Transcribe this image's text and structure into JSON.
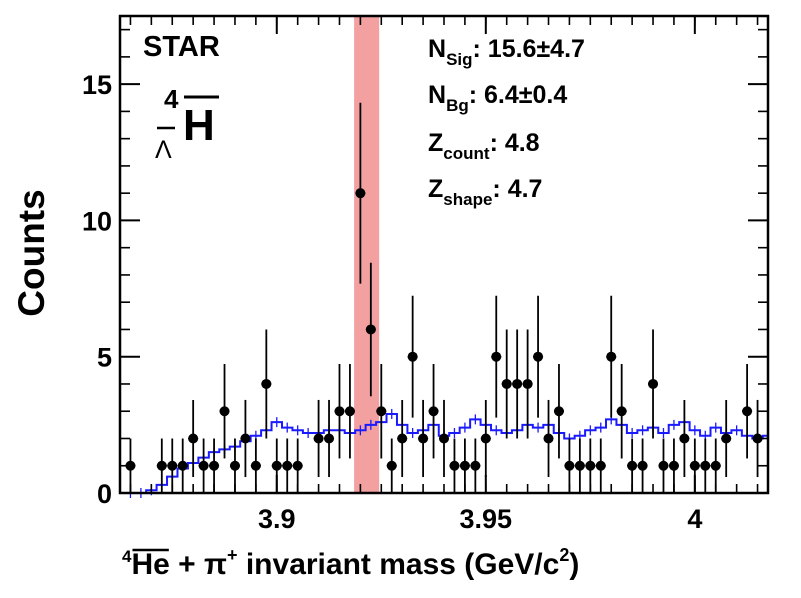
{
  "chart_data": {
    "type": "scatter",
    "experiment_label": "STAR",
    "particle": {
      "superscript": "4",
      "subscript": "Λ",
      "symbol": "H"
    },
    "stats": [
      {
        "main": "N",
        "sub": "Sig",
        "value": ": 15.6±4.7"
      },
      {
        "main": "N",
        "sub": "Bg",
        "value": ": 6.4±0.4"
      },
      {
        "main": "Z",
        "sub": "count",
        "value": ": 4.8"
      },
      {
        "main": "Z",
        "sub": "shape",
        "value": ": 4.7"
      }
    ],
    "xlabel": {
      "sup": "4",
      "nucleus": "He",
      "rest": " + π",
      "pion_charge": "+",
      "tail": " invariant mass (GeV/c",
      "tail_sup": "2",
      "close": ")"
    },
    "ylabel": "Counts",
    "xlim": [
      3.8625,
      4.0175
    ],
    "ylim": [
      0,
      17.5
    ],
    "x_ticks": [
      {
        "value": 3.9,
        "label": "3.9"
      },
      {
        "value": 3.95,
        "label": "3.95"
      },
      {
        "value": 4.0,
        "label": "4"
      }
    ],
    "y_ticks": [
      {
        "value": 0,
        "label": "0"
      },
      {
        "value": 5,
        "label": "5"
      },
      {
        "value": 10,
        "label": "10"
      },
      {
        "value": 15,
        "label": "15"
      }
    ],
    "signal_window": [
      3.9185,
      3.9245
    ],
    "bin_width": 0.0025,
    "data_points": {
      "x": [
        3.865,
        3.8725,
        3.875,
        3.8775,
        3.88,
        3.8825,
        3.885,
        3.8875,
        3.89,
        3.8925,
        3.895,
        3.8975,
        3.9,
        3.9025,
        3.905,
        3.91,
        3.9125,
        3.915,
        3.9175,
        3.92,
        3.9225,
        3.925,
        3.9275,
        3.93,
        3.9325,
        3.935,
        3.9375,
        3.94,
        3.9425,
        3.945,
        3.9475,
        3.95,
        3.9525,
        3.955,
        3.9575,
        3.96,
        3.9625,
        3.965,
        3.9675,
        3.97,
        3.9725,
        3.975,
        3.9775,
        3.98,
        3.9825,
        3.985,
        3.9875,
        3.99,
        3.9925,
        3.995,
        3.9975,
        4.0,
        4.0025,
        4.005,
        4.0075,
        4.0125,
        4.015
      ],
      "y": [
        1,
        1,
        1,
        1,
        2,
        1,
        1,
        3,
        1,
        2,
        1,
        4,
        1,
        1,
        1,
        2,
        2,
        3,
        3,
        11,
        6,
        3,
        1,
        2,
        5,
        2,
        3,
        2,
        1,
        1,
        1,
        2,
        5,
        4,
        4,
        4,
        5,
        2,
        3,
        1,
        1,
        1,
        1,
        5,
        3,
        1,
        1,
        4,
        1,
        1,
        2,
        1,
        1,
        1,
        2,
        3,
        2
      ],
      "color": "#000000"
    },
    "background_fit": {
      "name": "background",
      "color": "#1a1aff",
      "x": [
        3.865,
        3.8675,
        3.87,
        3.8725,
        3.875,
        3.8775,
        3.88,
        3.8825,
        3.885,
        3.8875,
        3.89,
        3.8925,
        3.895,
        3.8975,
        3.9,
        3.9025,
        3.905,
        3.9075,
        3.91,
        3.9125,
        3.915,
        3.9175,
        3.92,
        3.9225,
        3.925,
        3.9275,
        3.93,
        3.9325,
        3.935,
        3.9375,
        3.94,
        3.9425,
        3.945,
        3.9475,
        3.95,
        3.9525,
        3.955,
        3.9575,
        3.96,
        3.9625,
        3.965,
        3.9675,
        3.97,
        3.9725,
        3.975,
        3.9775,
        3.98,
        3.9825,
        3.985,
        3.9875,
        3.99,
        3.9925,
        3.995,
        3.9975,
        4.0,
        4.0025,
        4.005,
        4.0075,
        4.01,
        4.0125,
        4.015,
        4.0175
      ],
      "y": [
        0.0,
        0.0,
        0.1,
        0.3,
        0.6,
        0.9,
        1.1,
        1.3,
        1.5,
        1.6,
        1.7,
        1.9,
        2.1,
        2.3,
        2.6,
        2.4,
        2.3,
        2.2,
        2.2,
        2.3,
        2.3,
        2.2,
        2.3,
        2.5,
        2.6,
        2.9,
        2.5,
        2.2,
        2.3,
        2.5,
        2.1,
        2.2,
        2.4,
        2.7,
        2.5,
        2.3,
        2.2,
        2.3,
        2.5,
        2.4,
        2.5,
        2.2,
        2.0,
        2.1,
        2.3,
        2.4,
        2.7,
        2.5,
        2.2,
        2.3,
        2.4,
        2.2,
        2.5,
        2.6,
        2.3,
        2.1,
        2.4,
        2.2,
        2.3,
        2.1,
        2.0,
        2.1
      ]
    },
    "signal_window_color": "#f2a0a0",
    "grid": false,
    "legend": "none"
  }
}
